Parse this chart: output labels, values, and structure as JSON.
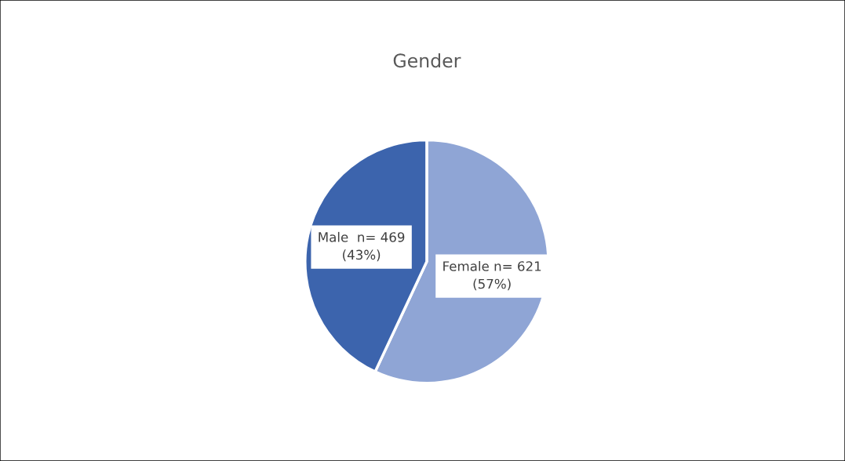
{
  "chart_data": {
    "type": "pie",
    "title": "Gender",
    "categories": [
      "Female n= 621\n(57%)",
      "Male  n= 469\n(43%)"
    ],
    "values": [
      621,
      469
    ],
    "colors": [
      "#8fa5d5",
      "#3c64ad"
    ],
    "legend": false
  }
}
